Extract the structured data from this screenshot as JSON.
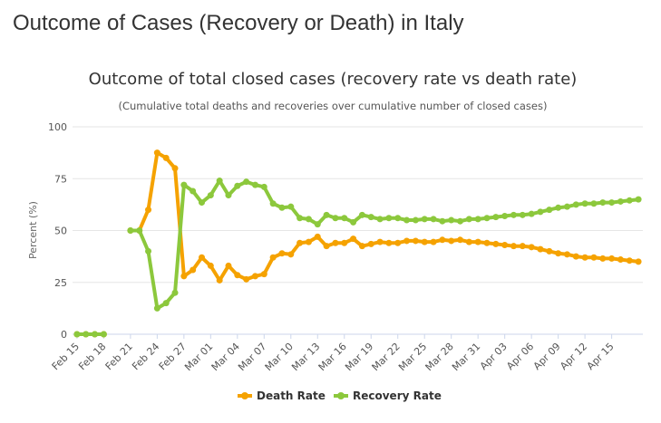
{
  "page": {
    "title": "Outcome of Cases (Recovery or Death) in Italy"
  },
  "chart_data": {
    "type": "line",
    "title": "Outcome of total closed cases (recovery rate vs death rate)",
    "subtitle": "(Cumulative total deaths and recoveries over cumulative number of closed cases)",
    "ylabel": "Percent (%)",
    "xlabel": "",
    "ylim": [
      0,
      100
    ],
    "yticks": [
      0,
      25,
      50,
      75,
      100
    ],
    "grid": true,
    "legend_position": "bottom-center",
    "x": [
      "Feb 15",
      "Feb 16",
      "Feb 17",
      "Feb 18",
      "Feb 19",
      "Feb 20",
      "Feb 21",
      "Feb 22",
      "Feb 23",
      "Feb 24",
      "Feb 25",
      "Feb 26",
      "Feb 27",
      "Feb 28",
      "Feb 29",
      "Mar 01",
      "Mar 02",
      "Mar 03",
      "Mar 04",
      "Mar 05",
      "Mar 06",
      "Mar 07",
      "Mar 08",
      "Mar 09",
      "Mar 10",
      "Mar 11",
      "Mar 12",
      "Mar 13",
      "Mar 14",
      "Mar 15",
      "Mar 16",
      "Mar 17",
      "Mar 18",
      "Mar 19",
      "Mar 20",
      "Mar 21",
      "Mar 22",
      "Mar 23",
      "Mar 24",
      "Mar 25",
      "Mar 26",
      "Mar 27",
      "Mar 28",
      "Mar 29",
      "Mar 30",
      "Mar 31",
      "Apr 01",
      "Apr 02",
      "Apr 03",
      "Apr 04",
      "Apr 05",
      "Apr 06",
      "Apr 07",
      "Apr 08",
      "Apr 09",
      "Apr 10",
      "Apr 11",
      "Apr 12",
      "Apr 13",
      "Apr 14",
      "Apr 15",
      "Apr 16",
      "Apr 17",
      "Apr 18"
    ],
    "xtick_labels": [
      "Feb 15",
      "Feb 18",
      "Feb 21",
      "Feb 24",
      "Feb 27",
      "Mar 01",
      "Mar 04",
      "Mar 07",
      "Mar 10",
      "Mar 13",
      "Mar 16",
      "Mar 19",
      "Mar 22",
      "Mar 25",
      "Mar 28",
      "Mar 31",
      "Apr 03",
      "Apr 06",
      "Apr 09",
      "Apr 12",
      "Apr 15"
    ],
    "series": [
      {
        "name": "Death Rate",
        "color": "#f5a200",
        "values": [
          0,
          0,
          0,
          0,
          null,
          null,
          50,
          50,
          60,
          87.5,
          85,
          80,
          28,
          31,
          37,
          33,
          26,
          33,
          28.5,
          26.5,
          28,
          29,
          37,
          39,
          38.5,
          44,
          44.5,
          47,
          42.5,
          44,
          44,
          46,
          42.5,
          43.5,
          44.5,
          44,
          44,
          45,
          45,
          44.5,
          44.5,
          45.5,
          45,
          45.5,
          44.5,
          44.5,
          44,
          43.5,
          43,
          42.5,
          42.5,
          42,
          41,
          40,
          39,
          38.5,
          37.5,
          37,
          37,
          36.5,
          36.5,
          36,
          35.5,
          35
        ]
      },
      {
        "name": "Recovery Rate",
        "color": "#8cc83c",
        "values": [
          0,
          0,
          0,
          0,
          null,
          null,
          50,
          50,
          40,
          12.5,
          15,
          20,
          72,
          69,
          63.5,
          67,
          74,
          67,
          71.5,
          73.5,
          72,
          71,
          63,
          61,
          61.5,
          56,
          55.5,
          53,
          57.5,
          56,
          56,
          54,
          57.5,
          56.5,
          55.5,
          56,
          56,
          55,
          55,
          55.5,
          55.5,
          54.5,
          55,
          54.5,
          55.5,
          55.5,
          56,
          56.5,
          57,
          57.5,
          57.5,
          58,
          59,
          60,
          61,
          61.5,
          62.5,
          63,
          63,
          63.5,
          63.5,
          64,
          64.5,
          65
        ]
      }
    ]
  }
}
